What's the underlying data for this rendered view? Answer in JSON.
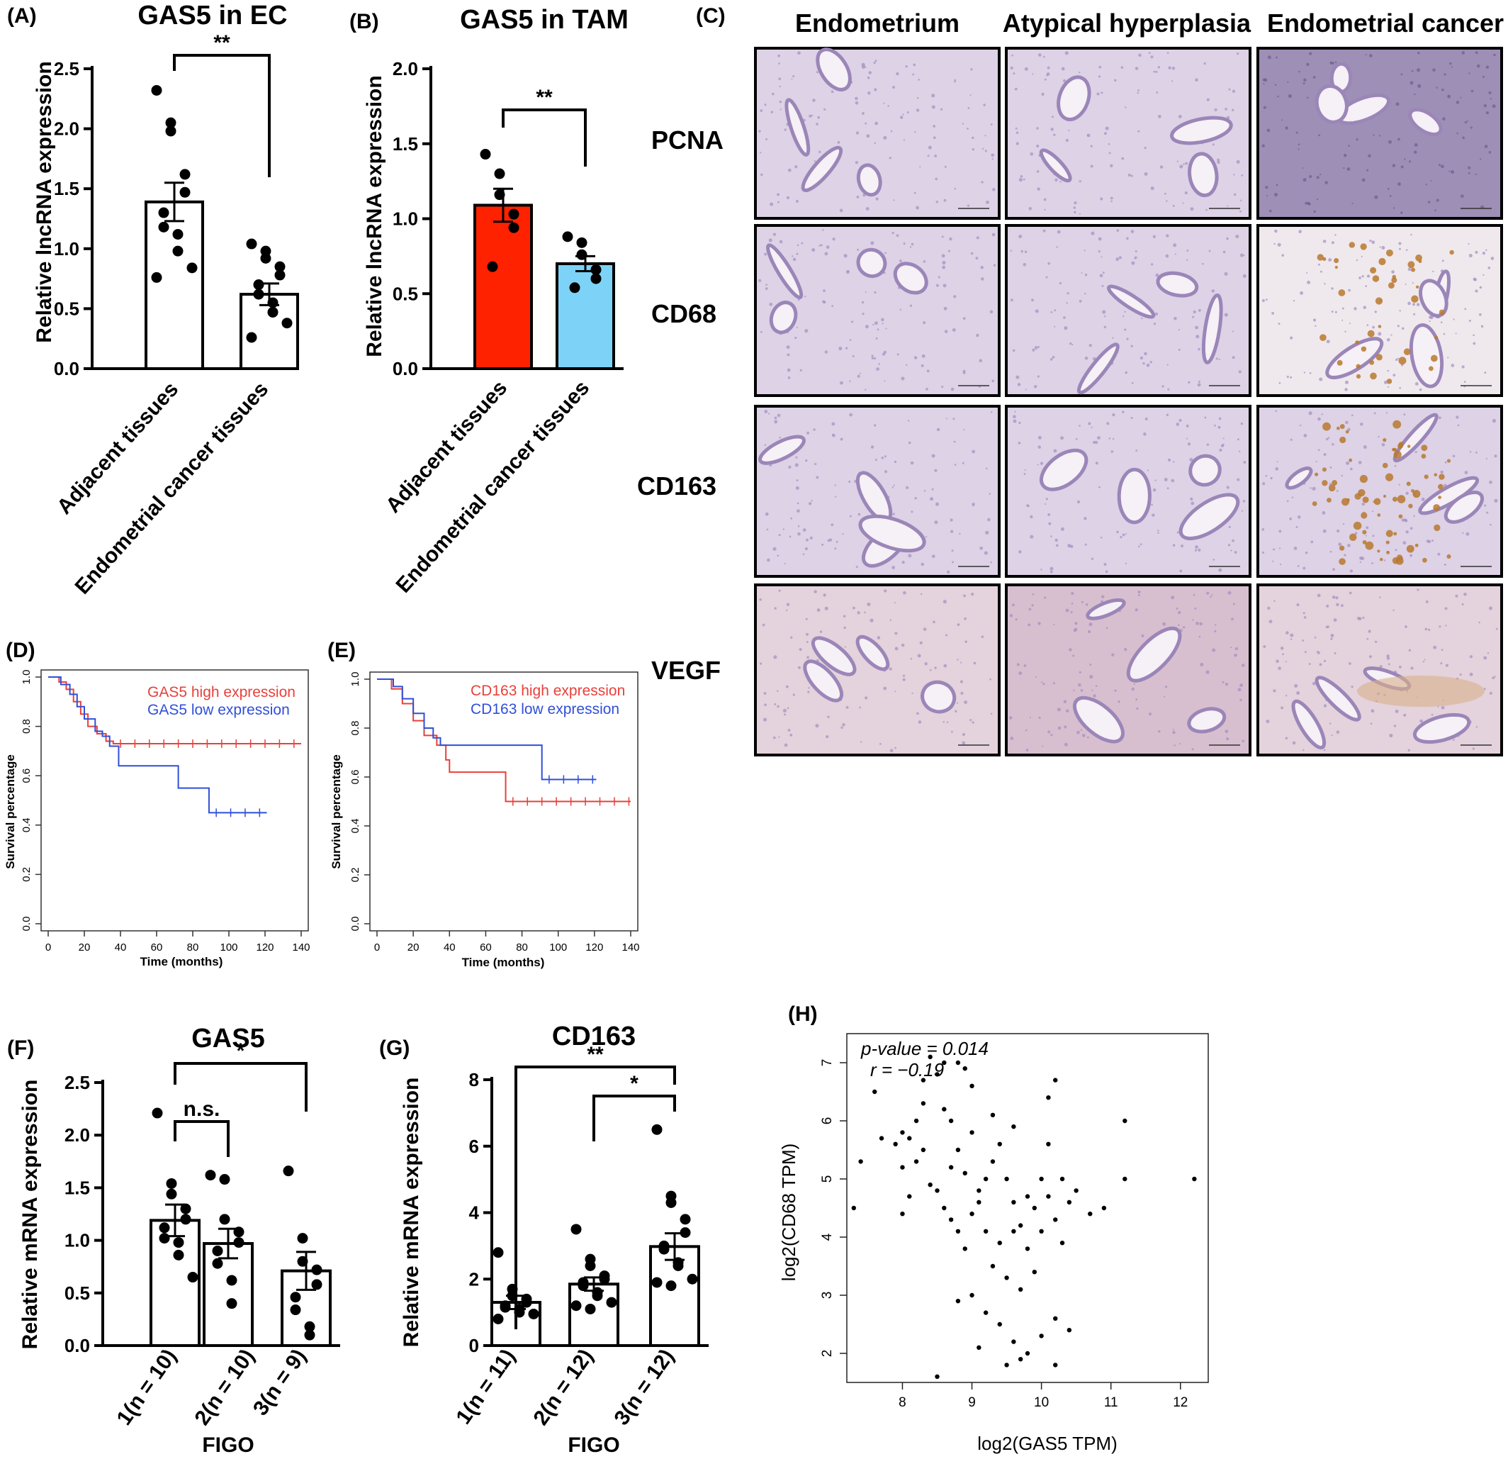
{
  "panels": {
    "A": {
      "letter": "(A)",
      "title": "GAS5 in EC",
      "ylabel": "Relative lncRNA expression",
      "significance": "**"
    },
    "B": {
      "letter": "(B)",
      "title": "GAS5 in TAM",
      "ylabel": "Relative lncRNA expression",
      "significance": "**"
    },
    "C": {
      "letter": "(C)",
      "columns": [
        "Endometrium",
        "Atypical hyperplasia",
        "Endometrial cancer"
      ],
      "rows": [
        "PCNA",
        "CD68",
        "CD163",
        "VEGF"
      ]
    },
    "D": {
      "letter": "(D)",
      "xlabel": "Time (months)",
      "ylabel": "Survival percentage",
      "legend": [
        "GAS5 high expression",
        "GAS5  low expression"
      ]
    },
    "E": {
      "letter": "(E)",
      "xlabel": "Time (months)",
      "ylabel": "Survival percentage",
      "legend": [
        "CD163 high expression",
        "CD163  low expression"
      ]
    },
    "F": {
      "letter": "(F)",
      "title": "GAS5",
      "ylabel": "Relative mRNA expression",
      "xlabel": "FIGO",
      "significance": [
        "n.s.",
        "*"
      ]
    },
    "G": {
      "letter": "(G)",
      "title": "CD163",
      "ylabel": "Relative mRNA expression",
      "xlabel": "FIGO",
      "significance": [
        "**",
        "*"
      ]
    },
    "H": {
      "letter": "(H)",
      "xlabel": "log2(GAS5 TPM)",
      "ylabel": "log2(CD68 TPM)",
      "pvalue_label": "p-value = 0.014",
      "r_label": "r = −0.19"
    }
  },
  "colors": {
    "red": "#ff2200",
    "blue": "#7dd3f7",
    "km_red": "#e8403a",
    "km_blue": "#2f4fd8",
    "tissue": "#c9b8d6"
  },
  "chart_data": [
    {
      "id": "A",
      "type": "bar",
      "categories": [
        "Adjacent tissues",
        "Endometrial cancer tissues"
      ],
      "values": [
        1.39,
        0.62
      ],
      "errors": [
        0.16,
        0.09
      ],
      "points": [
        [
          2.32,
          2.05,
          1.98,
          1.62,
          1.47,
          1.3,
          1.18,
          1.12,
          0.98,
          0.84,
          0.76
        ],
        [
          1.04,
          0.98,
          0.92,
          0.85,
          0.78,
          0.7,
          0.62,
          0.55,
          0.47,
          0.38,
          0.26
        ]
      ],
      "ylim": [
        0,
        2.5
      ],
      "yticks": [
        "0.0",
        "0.5",
        "1.0",
        "1.5",
        "2.0",
        "2.5"
      ]
    },
    {
      "id": "B",
      "type": "bar",
      "categories": [
        "Adjacent tissues",
        "Endometrial cancer tissues"
      ],
      "values": [
        1.09,
        0.7
      ],
      "errors": [
        0.11,
        0.05
      ],
      "points": [
        [
          1.43,
          1.3,
          1.16,
          1.03,
          0.94,
          0.68
        ],
        [
          0.88,
          0.84,
          0.76,
          0.66,
          0.6,
          0.54
        ]
      ],
      "ylim": [
        0,
        2.0
      ],
      "yticks": [
        "0.0",
        "0.5",
        "1.0",
        "1.5",
        "2.0"
      ]
    },
    {
      "id": "F",
      "type": "bar",
      "categories": [
        "1(n = 10)",
        "2(n = 10)",
        "3(n = 9)"
      ],
      "values": [
        1.19,
        0.97,
        0.71
      ],
      "errors": [
        0.15,
        0.14,
        0.18
      ],
      "points": [
        [
          2.21,
          1.54,
          1.44,
          1.3,
          1.2,
          1.12,
          1.02,
          0.98,
          0.86,
          0.65
        ],
        [
          1.62,
          1.58,
          1.2,
          1.08,
          0.98,
          0.9,
          0.78,
          0.62,
          0.4
        ],
        [
          1.66,
          1.02,
          0.8,
          0.72,
          0.58,
          0.46,
          0.34,
          0.18,
          0.1
        ]
      ],
      "ylim": [
        0,
        2.5
      ],
      "yticks": [
        "0.0",
        "0.5",
        "1.0",
        "1.5",
        "2.0",
        "2.5"
      ]
    },
    {
      "id": "G",
      "type": "bar",
      "categories": [
        "1(n = 11)",
        "2(n = 12)",
        "3(n = 12)"
      ],
      "values": [
        1.3,
        1.85,
        2.98
      ],
      "errors": [
        0.2,
        0.2,
        0.4
      ],
      "points": [
        [
          2.8,
          1.7,
          1.5,
          1.4,
          1.3,
          1.2,
          1.15,
          1.1,
          1.0,
          0.95,
          0.8
        ],
        [
          3.5,
          2.6,
          2.4,
          2.1,
          2.0,
          1.9,
          1.8,
          1.6,
          1.5,
          1.3,
          1.2,
          1.1
        ],
        [
          6.5,
          4.5,
          4.3,
          3.8,
          3.4,
          3.0,
          2.9,
          2.5,
          2.4,
          2.0,
          1.9,
          1.8
        ]
      ],
      "ylim": [
        0,
        8
      ],
      "yticks": [
        "0",
        "2",
        "4",
        "6",
        "8"
      ]
    },
    {
      "id": "D",
      "type": "line",
      "xlim": [
        0,
        140
      ],
      "ylim": [
        0,
        1.0
      ],
      "xticks": [
        "0",
        "20",
        "40",
        "60",
        "80",
        "100",
        "120",
        "140"
      ],
      "yticks": [
        "0.0",
        "0.2",
        "0.4",
        "0.6",
        "0.8",
        "1.0"
      ],
      "series": [
        {
          "name": "GAS5 high expression",
          "steps": [
            [
              0,
              1.0
            ],
            [
              6,
              0.98
            ],
            [
              10,
              0.95
            ],
            [
              14,
              0.9
            ],
            [
              18,
              0.85
            ],
            [
              22,
              0.8
            ],
            [
              27,
              0.77
            ],
            [
              32,
              0.74
            ],
            [
              36,
              0.73
            ],
            [
              140,
              0.73
            ]
          ]
        },
        {
          "name": "GAS5  low expression",
          "steps": [
            [
              0,
              1.0
            ],
            [
              7,
              0.97
            ],
            [
              12,
              0.93
            ],
            [
              16,
              0.88
            ],
            [
              20,
              0.83
            ],
            [
              26,
              0.78
            ],
            [
              30,
              0.76
            ],
            [
              34,
              0.72
            ],
            [
              39,
              0.64
            ],
            [
              72,
              0.55
            ],
            [
              89,
              0.45
            ],
            [
              121,
              0.45
            ]
          ]
        }
      ]
    },
    {
      "id": "E",
      "type": "line",
      "xlim": [
        0,
        140
      ],
      "ylim": [
        0,
        1.0
      ],
      "xticks": [
        "0",
        "20",
        "40",
        "60",
        "80",
        "100",
        "120",
        "140"
      ],
      "yticks": [
        "0.0",
        "0.2",
        "0.4",
        "0.6",
        "0.8",
        "1.0"
      ],
      "series": [
        {
          "name": "CD163 high expression",
          "steps": [
            [
              0,
              1.0
            ],
            [
              8,
              0.96
            ],
            [
              14,
              0.9
            ],
            [
              20,
              0.83
            ],
            [
              26,
              0.77
            ],
            [
              33,
              0.73
            ],
            [
              38,
              0.67
            ],
            [
              40,
              0.62
            ],
            [
              71,
              0.5
            ],
            [
              140,
              0.5
            ]
          ]
        },
        {
          "name": "CD163  low expression",
          "steps": [
            [
              0,
              1.0
            ],
            [
              9,
              0.97
            ],
            [
              14,
              0.92
            ],
            [
              20,
              0.86
            ],
            [
              26,
              0.8
            ],
            [
              31,
              0.76
            ],
            [
              35,
              0.73
            ],
            [
              90,
              0.73
            ],
            [
              91,
              0.59
            ],
            [
              121,
              0.59
            ]
          ]
        }
      ]
    },
    {
      "id": "H",
      "type": "scatter",
      "xlim": [
        7.2,
        12.4
      ],
      "ylim": [
        1.5,
        7.5
      ],
      "xticks": [
        "8",
        "9",
        "10",
        "11",
        "12"
      ],
      "yticks": [
        "2",
        "3",
        "4",
        "5",
        "6",
        "7"
      ],
      "points": [
        [
          7.4,
          5.3
        ],
        [
          7.6,
          6.5
        ],
        [
          7.7,
          5.7
        ],
        [
          7.9,
          5.6
        ],
        [
          7.3,
          4.5
        ],
        [
          8.0,
          5.2
        ],
        [
          8.1,
          5.7
        ],
        [
          8.2,
          6.0
        ],
        [
          8.3,
          5.5
        ],
        [
          8.4,
          7.1
        ],
        [
          8.5,
          6.8
        ],
        [
          8.6,
          6.2
        ],
        [
          8.7,
          6.0
        ],
        [
          8.8,
          5.5
        ],
        [
          8.9,
          5.1
        ],
        [
          8.5,
          4.8
        ],
        [
          8.6,
          4.5
        ],
        [
          8.7,
          4.3
        ],
        [
          8.8,
          4.1
        ],
        [
          8.9,
          3.8
        ],
        [
          9.0,
          4.4
        ],
        [
          9.1,
          4.8
        ],
        [
          9.2,
          5.0
        ],
        [
          9.3,
          5.3
        ],
        [
          9.4,
          5.6
        ],
        [
          9.5,
          5.0
        ],
        [
          9.6,
          4.6
        ],
        [
          9.7,
          4.2
        ],
        [
          9.8,
          3.8
        ],
        [
          9.9,
          4.5
        ],
        [
          10.0,
          5.0
        ],
        [
          10.1,
          4.7
        ],
        [
          10.2,
          4.3
        ],
        [
          10.3,
          3.9
        ],
        [
          10.4,
          4.6
        ],
        [
          10.5,
          4.8
        ],
        [
          9.0,
          3.0
        ],
        [
          9.2,
          2.7
        ],
        [
          9.4,
          2.5
        ],
        [
          9.6,
          2.2
        ],
        [
          9.8,
          2.0
        ],
        [
          10.0,
          2.3
        ],
        [
          10.2,
          2.6
        ],
        [
          10.4,
          2.4
        ],
        [
          9.3,
          3.5
        ],
        [
          9.5,
          3.3
        ],
        [
          9.7,
          3.1
        ],
        [
          9.9,
          3.4
        ],
        [
          8.8,
          2.9
        ],
        [
          9.1,
          2.1
        ],
        [
          8.3,
          6.3
        ],
        [
          8.2,
          5.3
        ],
        [
          8.0,
          5.8
        ],
        [
          8.4,
          4.9
        ],
        [
          9.3,
          6.1
        ],
        [
          9.6,
          5.9
        ],
        [
          10.1,
          6.4
        ],
        [
          10.2,
          6.7
        ],
        [
          10.1,
          5.6
        ],
        [
          10.7,
          4.4
        ],
        [
          10.9,
          4.5
        ],
        [
          11.2,
          6.0
        ],
        [
          11.2,
          5.0
        ],
        [
          12.2,
          5.0
        ],
        [
          8.5,
          1.6
        ],
        [
          9.5,
          1.8
        ],
        [
          9.7,
          1.9
        ],
        [
          10.2,
          1.8
        ],
        [
          9.0,
          6.6
        ],
        [
          8.9,
          6.9
        ],
        [
          8.8,
          7.0
        ],
        [
          8.6,
          7.0
        ],
        [
          8.3,
          6.7
        ],
        [
          8.1,
          4.7
        ],
        [
          8.0,
          4.4
        ],
        [
          9.0,
          5.8
        ],
        [
          9.2,
          4.1
        ],
        [
          9.4,
          3.9
        ],
        [
          9.6,
          4.1
        ],
        [
          9.8,
          4.7
        ],
        [
          10.0,
          4.1
        ],
        [
          10.3,
          5.0
        ],
        [
          9.1,
          4.6
        ],
        [
          8.7,
          5.2
        ]
      ]
    }
  ]
}
